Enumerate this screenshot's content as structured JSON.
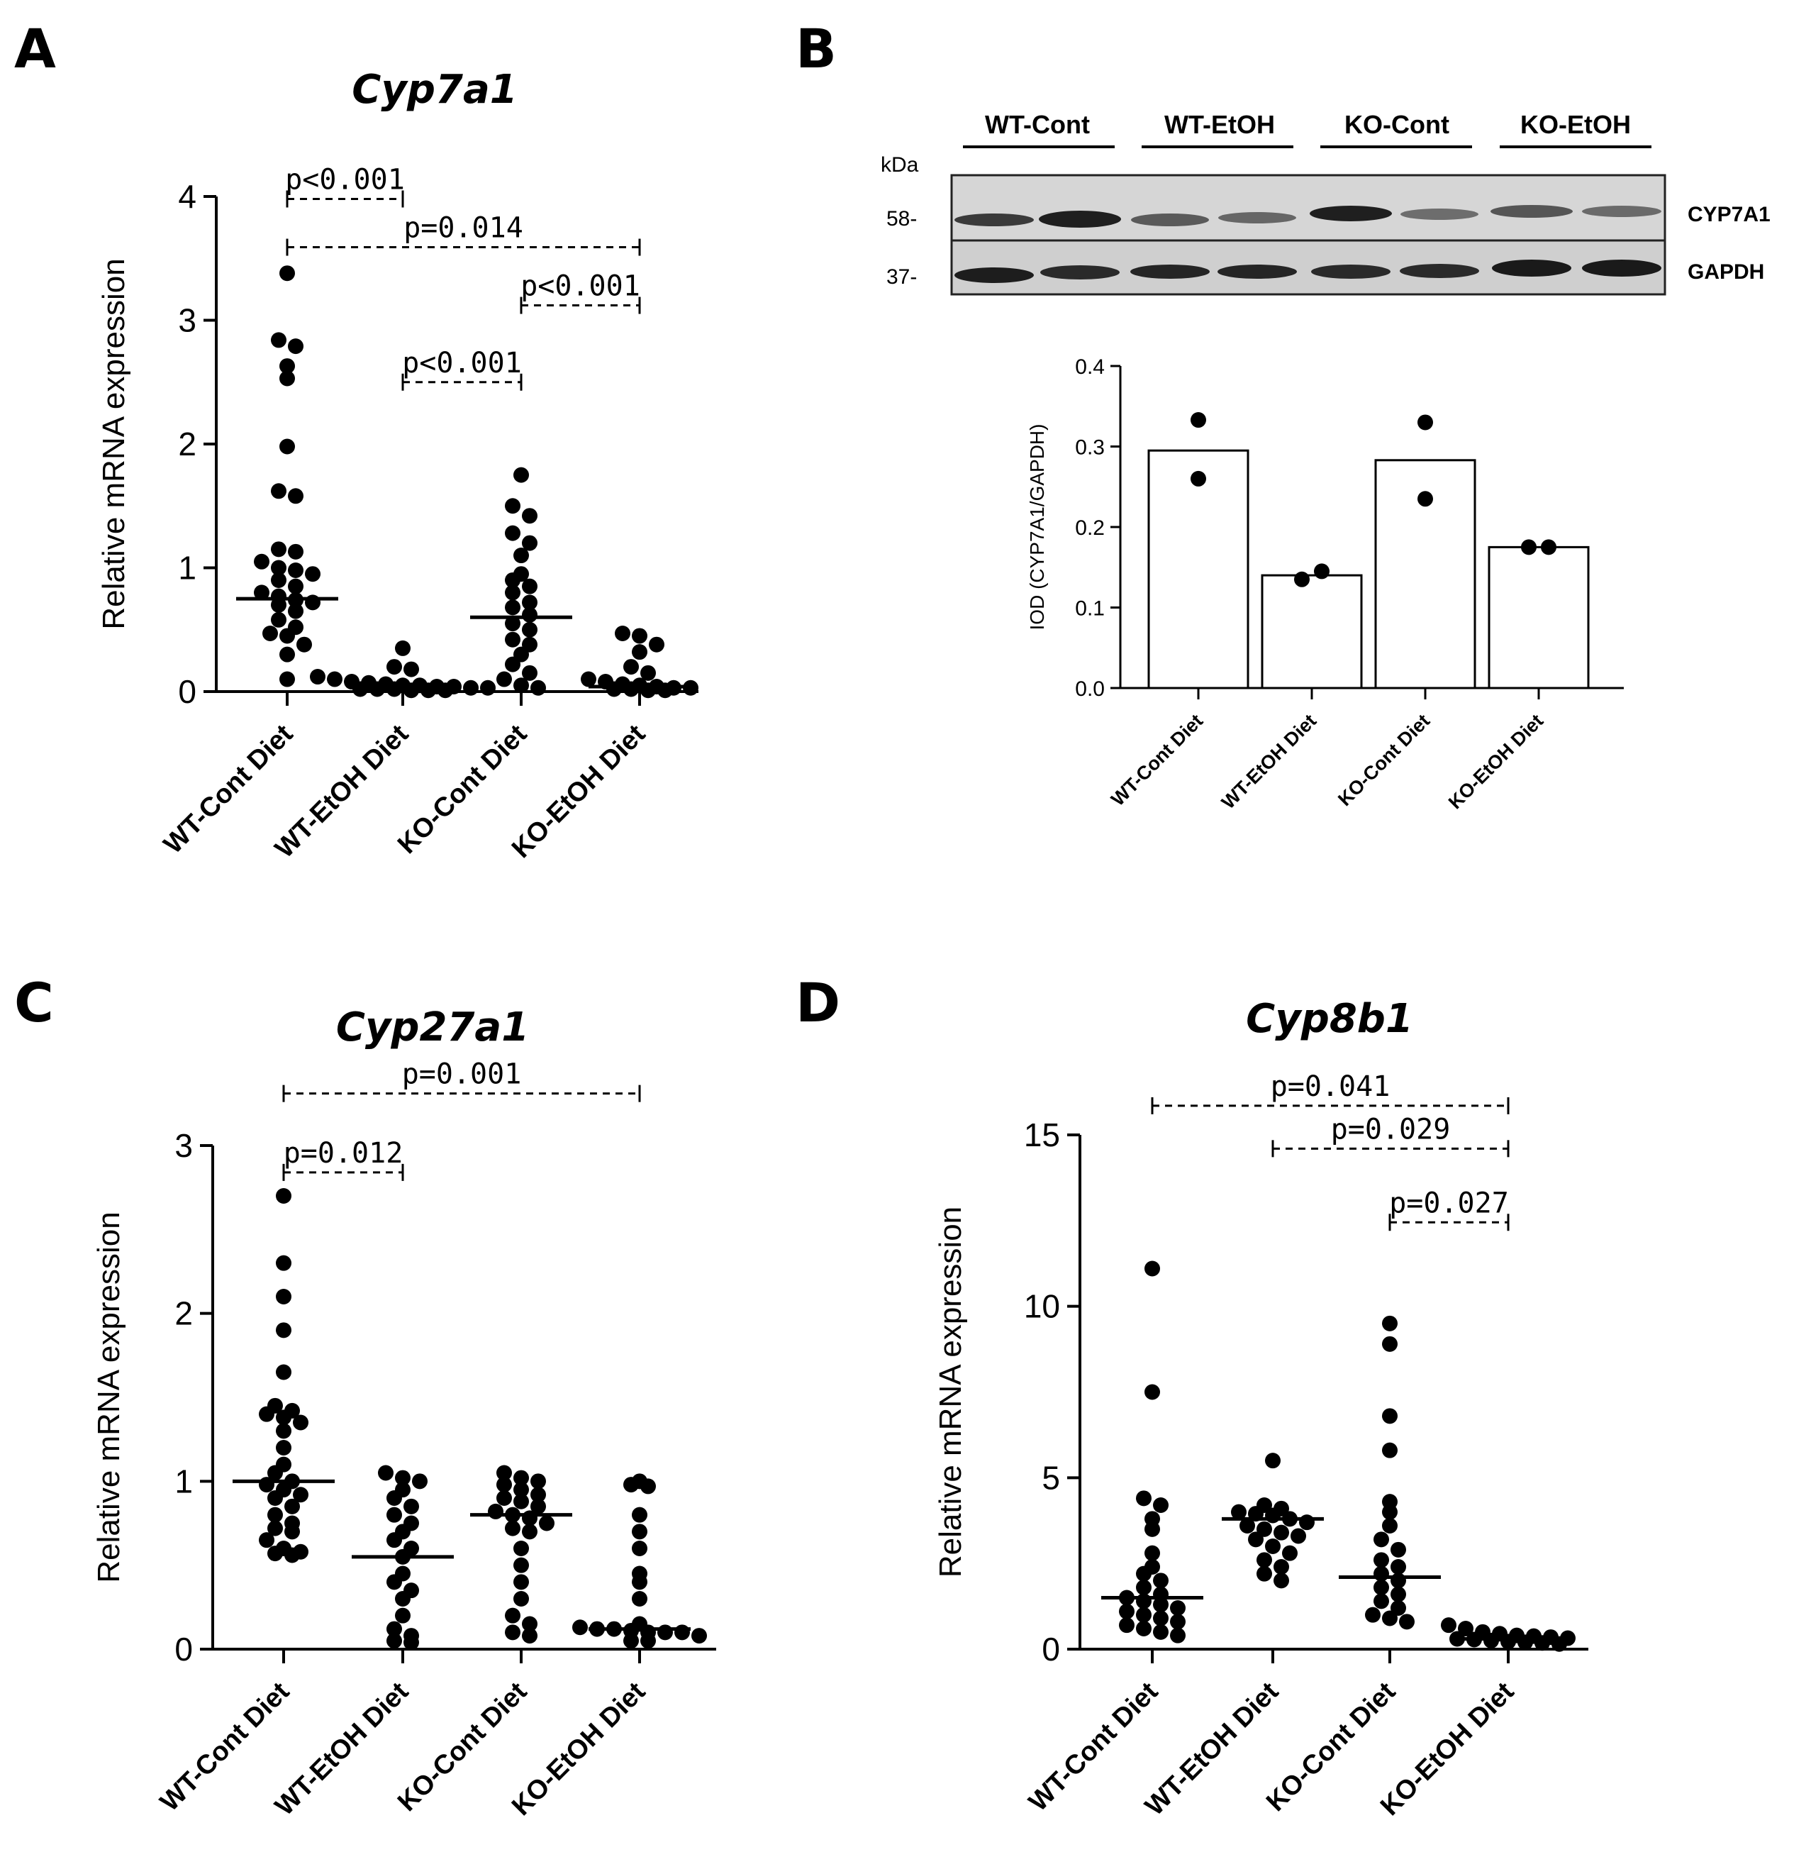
{
  "panels": {
    "A": {
      "label": "A"
    },
    "B": {
      "label": "B"
    },
    "C": {
      "label": "C"
    },
    "D": {
      "label": "D"
    }
  },
  "western_blot": {
    "lanes": [
      "WT-Cont",
      "WT-EtOH",
      "KO-Cont",
      "KO-EtOH"
    ],
    "kda_label": "kDa",
    "markers": [
      "58-",
      "37-"
    ],
    "bands": [
      "CYP7A1",
      "GAPDH"
    ]
  },
  "chart_data": [
    {
      "panel": "A",
      "type": "scatter",
      "title": "Cyp7a1",
      "ylabel": "Relative mRNA expression",
      "xlabel": "",
      "categories": [
        "WT-Cont Diet",
        "WT-EtOH Diet",
        "KO-Cont Diet",
        "KO-EtOH Diet"
      ],
      "ylim": [
        0,
        4
      ],
      "yticks": [
        0,
        1,
        2,
        3,
        4
      ],
      "medians": [
        0.75,
        0.04,
        0.6,
        0.04
      ],
      "points": [
        [
          3.38,
          2.84,
          2.79,
          2.63,
          2.53,
          1.98,
          1.62,
          1.58,
          1.15,
          1.13,
          1.05,
          1.0,
          0.98,
          0.95,
          0.9,
          0.85,
          0.8,
          0.77,
          0.74,
          0.72,
          0.7,
          0.65,
          0.58,
          0.52,
          0.47,
          0.45,
          0.38,
          0.3,
          0.1
        ],
        [
          0.35,
          0.2,
          0.18,
          0.12,
          0.1,
          0.08,
          0.07,
          0.06,
          0.05,
          0.05,
          0.04,
          0.04,
          0.03,
          0.03,
          0.02,
          0.02,
          0.02,
          0.01,
          0.01,
          0.01
        ],
        [
          1.75,
          1.5,
          1.42,
          1.28,
          1.2,
          1.1,
          0.95,
          0.9,
          0.85,
          0.8,
          0.72,
          0.68,
          0.62,
          0.55,
          0.5,
          0.42,
          0.38,
          0.3,
          0.22,
          0.15,
          0.1,
          0.05,
          0.03
        ],
        [
          0.47,
          0.45,
          0.38,
          0.32,
          0.2,
          0.15,
          0.1,
          0.08,
          0.06,
          0.05,
          0.04,
          0.03,
          0.03,
          0.02,
          0.02,
          0.01,
          0.01
        ]
      ],
      "comparisons": [
        {
          "from": 0,
          "to": 1,
          "label": "p<0.001",
          "y": 3.98
        },
        {
          "from": 0,
          "to": 3,
          "label": "p=0.014",
          "y": 3.59
        },
        {
          "from": 2,
          "to": 3,
          "label": "p<0.001",
          "y": 3.12
        },
        {
          "from": 1,
          "to": 2,
          "label": "p<0.001",
          "y": 2.5
        }
      ]
    },
    {
      "panel": "B",
      "type": "bar",
      "title": "",
      "ylabel": "IOD (CYP7A1/GAPDH)",
      "xlabel": "",
      "categories": [
        "WT-Cont Diet",
        "WT-EtOH Diet",
        "KO-Cont Diet",
        "KO-EtOH Diet"
      ],
      "ylim": [
        0,
        0.4
      ],
      "yticks": [
        "0.0",
        "0.1",
        "0.2",
        "0.3",
        "0.4"
      ],
      "values": [
        0.295,
        0.14,
        0.283,
        0.175
      ],
      "points": [
        [
          0.333,
          0.26
        ],
        [
          0.135,
          0.145
        ],
        [
          0.33,
          0.235
        ],
        [
          0.175,
          0.175
        ]
      ]
    },
    {
      "panel": "C",
      "type": "scatter",
      "title": "Cyp27a1",
      "ylabel": "Relative mRNA expression",
      "xlabel": "",
      "categories": [
        "WT-Cont Diet",
        "WT-EtOH Diet",
        "KO-Cont Diet",
        "KO-EtOH Diet"
      ],
      "ylim": [
        0,
        3
      ],
      "yticks": [
        0,
        1,
        2,
        3
      ],
      "medians": [
        1.0,
        0.55,
        0.8,
        0.12
      ],
      "points": [
        [
          2.7,
          2.3,
          2.1,
          1.9,
          1.65,
          1.45,
          1.42,
          1.4,
          1.38,
          1.35,
          1.3,
          1.2,
          1.1,
          1.05,
          1.0,
          0.98,
          0.95,
          0.92,
          0.9,
          0.85,
          0.8,
          0.75,
          0.72,
          0.7,
          0.65,
          0.6,
          0.58,
          0.57,
          0.56
        ],
        [
          1.05,
          1.02,
          1.0,
          0.95,
          0.9,
          0.85,
          0.8,
          0.75,
          0.7,
          0.65,
          0.6,
          0.55,
          0.45,
          0.4,
          0.35,
          0.3,
          0.2,
          0.12,
          0.08,
          0.05,
          0.04
        ],
        [
          1.05,
          1.02,
          1.0,
          0.98,
          0.95,
          0.92,
          0.9,
          0.88,
          0.85,
          0.82,
          0.8,
          0.78,
          0.75,
          0.72,
          0.7,
          0.6,
          0.5,
          0.4,
          0.3,
          0.2,
          0.15,
          0.1,
          0.08
        ],
        [
          1.0,
          0.98,
          0.97,
          0.8,
          0.7,
          0.6,
          0.45,
          0.4,
          0.3,
          0.15,
          0.13,
          0.12,
          0.12,
          0.11,
          0.1,
          0.1,
          0.1,
          0.08,
          0.05,
          0.05
        ]
      ],
      "comparisons": [
        {
          "from": 0,
          "to": 3,
          "label": "p=0.001",
          "y": 3.31
        },
        {
          "from": 0,
          "to": 1,
          "label": "p=0.012",
          "y": 2.84
        }
      ]
    },
    {
      "panel": "D",
      "type": "scatter",
      "title": "Cyp8b1",
      "ylabel": "Relative mRNA expression",
      "xlabel": "",
      "categories": [
        "WT-Cont Diet",
        "WT-EtOH Diet",
        "KO-Cont Diet",
        "KO-EtOH Diet"
      ],
      "ylim": [
        0,
        15
      ],
      "yticks": [
        0,
        5,
        10,
        15
      ],
      "medians": [
        1.5,
        3.8,
        2.1,
        0.3
      ],
      "points": [
        [
          11.1,
          7.5,
          4.4,
          4.2,
          3.8,
          3.5,
          2.8,
          2.4,
          2.2,
          2.0,
          1.8,
          1.6,
          1.5,
          1.4,
          1.3,
          1.2,
          1.1,
          1.0,
          0.9,
          0.8,
          0.7,
          0.6,
          0.5,
          0.4
        ],
        [
          5.5,
          4.2,
          4.1,
          4.0,
          3.95,
          3.9,
          3.8,
          3.7,
          3.6,
          3.5,
          3.4,
          3.3,
          3.2,
          3.0,
          2.8,
          2.6,
          2.4,
          2.2,
          2.0
        ],
        [
          9.5,
          8.9,
          6.8,
          5.8,
          4.3,
          4.0,
          3.6,
          3.2,
          2.9,
          2.6,
          2.4,
          2.2,
          2.0,
          1.8,
          1.6,
          1.4,
          1.2,
          1.0,
          0.9,
          0.8
        ],
        [
          0.7,
          0.6,
          0.5,
          0.45,
          0.4,
          0.38,
          0.35,
          0.32,
          0.3,
          0.28,
          0.25,
          0.22,
          0.2,
          0.18,
          0.15
        ]
      ],
      "comparisons": [
        {
          "from": 0,
          "to": 3,
          "label": "p=0.041",
          "y": 15.85
        },
        {
          "from": 1,
          "to": 3,
          "label": "p=0.029",
          "y": 14.6
        },
        {
          "from": 2,
          "to": 3,
          "label": "p=0.027",
          "y": 12.45
        }
      ]
    }
  ]
}
